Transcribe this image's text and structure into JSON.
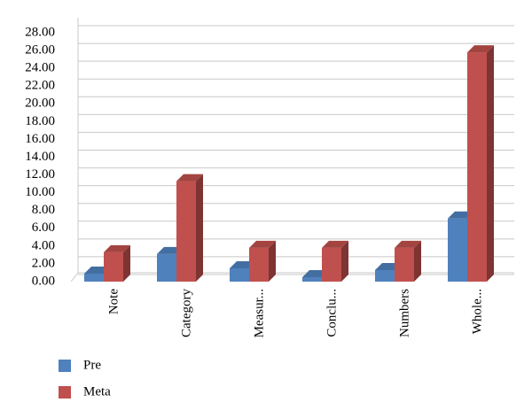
{
  "chart_data": {
    "type": "bar3d",
    "categories": [
      "Note",
      "Category",
      "Measur...",
      "Conclu...",
      "Numbers",
      "Whole..."
    ],
    "series": [
      {
        "name": "Pre",
        "color": "#4f81bd",
        "values": [
          0.9,
          3.1,
          1.5,
          0.5,
          1.3,
          7.1
        ]
      },
      {
        "name": "Meta",
        "color": "#c0504d",
        "values": [
          3.3,
          11.3,
          3.8,
          3.8,
          3.8,
          25.8
        ]
      }
    ],
    "ylim": [
      0,
      28
    ],
    "yticks": [
      {
        "value": 0,
        "label": "0.00"
      },
      {
        "value": 2,
        "label": "2.00"
      },
      {
        "value": 4,
        "label": "4.00"
      },
      {
        "value": 6,
        "label": "6.00"
      },
      {
        "value": 8,
        "label": "8.00"
      },
      {
        "value": 10,
        "label": "10.00"
      },
      {
        "value": 12,
        "label": "12.00"
      },
      {
        "value": 14,
        "label": "14.00"
      },
      {
        "value": 16,
        "label": "16.00"
      },
      {
        "value": 18,
        "label": "18.00"
      },
      {
        "value": 20,
        "label": "20.00"
      },
      {
        "value": 22,
        "label": "22.00"
      },
      {
        "value": 24,
        "label": "24.00"
      },
      {
        "value": 26,
        "label": "26.00"
      },
      {
        "value": 28,
        "label": "28.00"
      }
    ],
    "grid": true
  }
}
